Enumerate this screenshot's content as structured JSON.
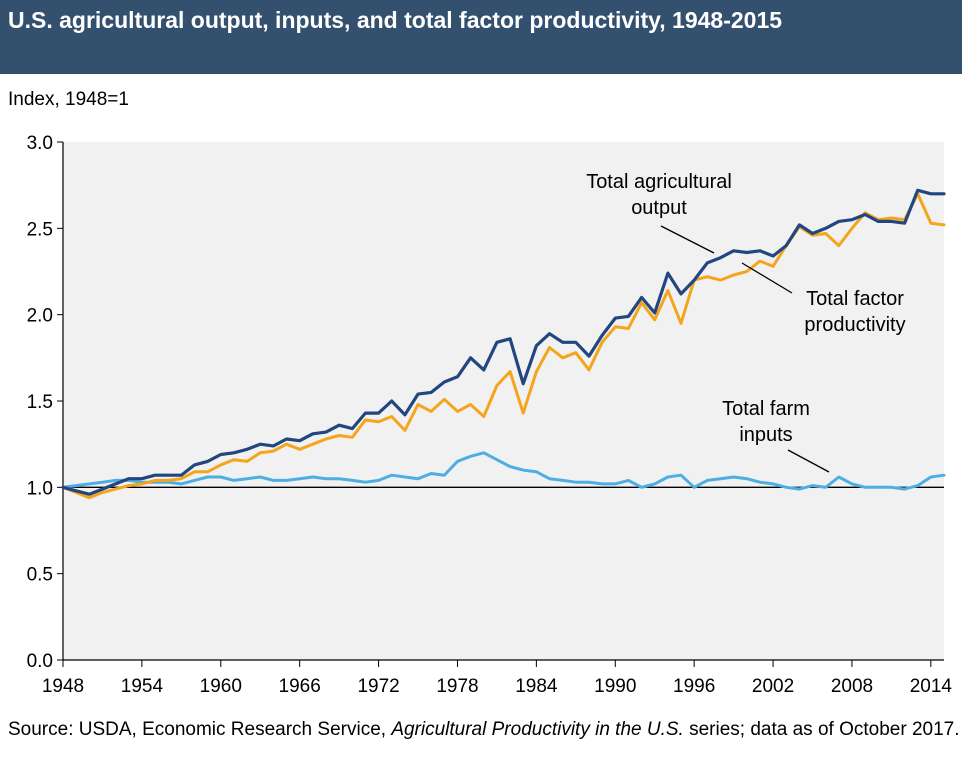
{
  "header": {
    "title": "U.S. agricultural output, inputs, and total factor productivity, 1948-2015",
    "background_color": "#34506f"
  },
  "y_axis_label": "Index, 1948=1",
  "source": {
    "prefix": "Source: USDA, Economic Research Service, ",
    "italic": "Agricultural Productivity in the U.S.",
    "suffix": " series; data as of October 2017."
  },
  "chart_data": {
    "type": "line",
    "ylabel": "Index, 1948=1",
    "ylim": [
      0,
      3.0
    ],
    "xlim": [
      1948,
      2015
    ],
    "y_ticks": [
      0.0,
      0.5,
      1.0,
      1.5,
      2.0,
      2.5,
      3.0
    ],
    "y_tick_labels": [
      "0.0",
      "0.5",
      "1.0",
      "1.5",
      "2.0",
      "2.5",
      "3.0"
    ],
    "x_ticks": [
      1948,
      1954,
      1960,
      1966,
      1972,
      1978,
      1984,
      1990,
      1996,
      2002,
      2008,
      2014
    ],
    "x_tick_labels": [
      "1948",
      "1954",
      "1960",
      "1966",
      "1972",
      "1978",
      "1984",
      "1990",
      "1996",
      "2002",
      "2008",
      "2014"
    ],
    "reference_line": 1.0,
    "grid": false,
    "plot_background": "#f1f1f1",
    "x": [
      1948,
      1949,
      1950,
      1951,
      1952,
      1953,
      1954,
      1955,
      1956,
      1957,
      1958,
      1959,
      1960,
      1961,
      1962,
      1963,
      1964,
      1965,
      1966,
      1967,
      1968,
      1969,
      1970,
      1971,
      1972,
      1973,
      1974,
      1975,
      1976,
      1977,
      1978,
      1979,
      1980,
      1981,
      1982,
      1983,
      1984,
      1985,
      1986,
      1987,
      1988,
      1989,
      1990,
      1991,
      1992,
      1993,
      1994,
      1995,
      1996,
      1997,
      1998,
      1999,
      2000,
      2001,
      2002,
      2003,
      2004,
      2005,
      2006,
      2007,
      2008,
      2009,
      2010,
      2011,
      2012,
      2013,
      2014,
      2015
    ],
    "series": [
      {
        "name": "Total agricultural output",
        "label_lines": [
          "Total agricultural",
          "output"
        ],
        "color": "#22467f",
        "values": [
          1.0,
          0.98,
          0.96,
          0.99,
          1.02,
          1.05,
          1.05,
          1.07,
          1.07,
          1.07,
          1.13,
          1.15,
          1.19,
          1.2,
          1.22,
          1.25,
          1.24,
          1.28,
          1.27,
          1.31,
          1.32,
          1.36,
          1.34,
          1.43,
          1.43,
          1.5,
          1.42,
          1.54,
          1.55,
          1.61,
          1.64,
          1.75,
          1.68,
          1.84,
          1.86,
          1.6,
          1.82,
          1.89,
          1.84,
          1.84,
          1.76,
          1.88,
          1.98,
          1.99,
          2.1,
          2.01,
          2.24,
          2.12,
          2.2,
          2.3,
          2.33,
          2.37,
          2.36,
          2.37,
          2.34,
          2.4,
          2.52,
          2.47,
          2.5,
          2.54,
          2.55,
          2.58,
          2.54,
          2.54,
          2.53,
          2.72,
          2.7,
          2.7
        ]
      },
      {
        "name": "Total factor productivity",
        "label_lines": [
          "Total factor",
          "productivity"
        ],
        "color": "#f4a51c",
        "values": [
          1.0,
          0.97,
          0.94,
          0.97,
          0.99,
          1.01,
          1.02,
          1.04,
          1.04,
          1.05,
          1.09,
          1.09,
          1.13,
          1.16,
          1.15,
          1.2,
          1.21,
          1.25,
          1.22,
          1.25,
          1.28,
          1.3,
          1.29,
          1.39,
          1.38,
          1.41,
          1.33,
          1.48,
          1.44,
          1.51,
          1.44,
          1.48,
          1.41,
          1.59,
          1.67,
          1.43,
          1.67,
          1.81,
          1.75,
          1.78,
          1.68,
          1.84,
          1.93,
          1.92,
          2.07,
          1.97,
          2.14,
          1.95,
          2.2,
          2.22,
          2.2,
          2.23,
          2.25,
          2.31,
          2.28,
          2.4,
          2.51,
          2.46,
          2.47,
          2.4,
          2.5,
          2.59,
          2.55,
          2.56,
          2.55,
          2.7,
          2.53,
          2.52
        ]
      },
      {
        "name": "Total farm inputs",
        "label_lines": [
          "Total farm",
          "inputs"
        ],
        "color": "#4eaee3",
        "values": [
          1.0,
          1.01,
          1.02,
          1.03,
          1.04,
          1.04,
          1.03,
          1.03,
          1.03,
          1.02,
          1.04,
          1.06,
          1.06,
          1.04,
          1.05,
          1.06,
          1.04,
          1.04,
          1.05,
          1.06,
          1.05,
          1.05,
          1.04,
          1.03,
          1.04,
          1.07,
          1.06,
          1.05,
          1.08,
          1.07,
          1.15,
          1.18,
          1.2,
          1.16,
          1.12,
          1.1,
          1.09,
          1.05,
          1.04,
          1.03,
          1.03,
          1.02,
          1.02,
          1.04,
          1.0,
          1.02,
          1.06,
          1.07,
          1.0,
          1.04,
          1.05,
          1.06,
          1.05,
          1.03,
          1.02,
          1.0,
          0.99,
          1.01,
          1.0,
          1.06,
          1.02,
          1.0,
          1.0,
          1.0,
          0.99,
          1.01,
          1.06,
          1.07
        ]
      }
    ]
  }
}
